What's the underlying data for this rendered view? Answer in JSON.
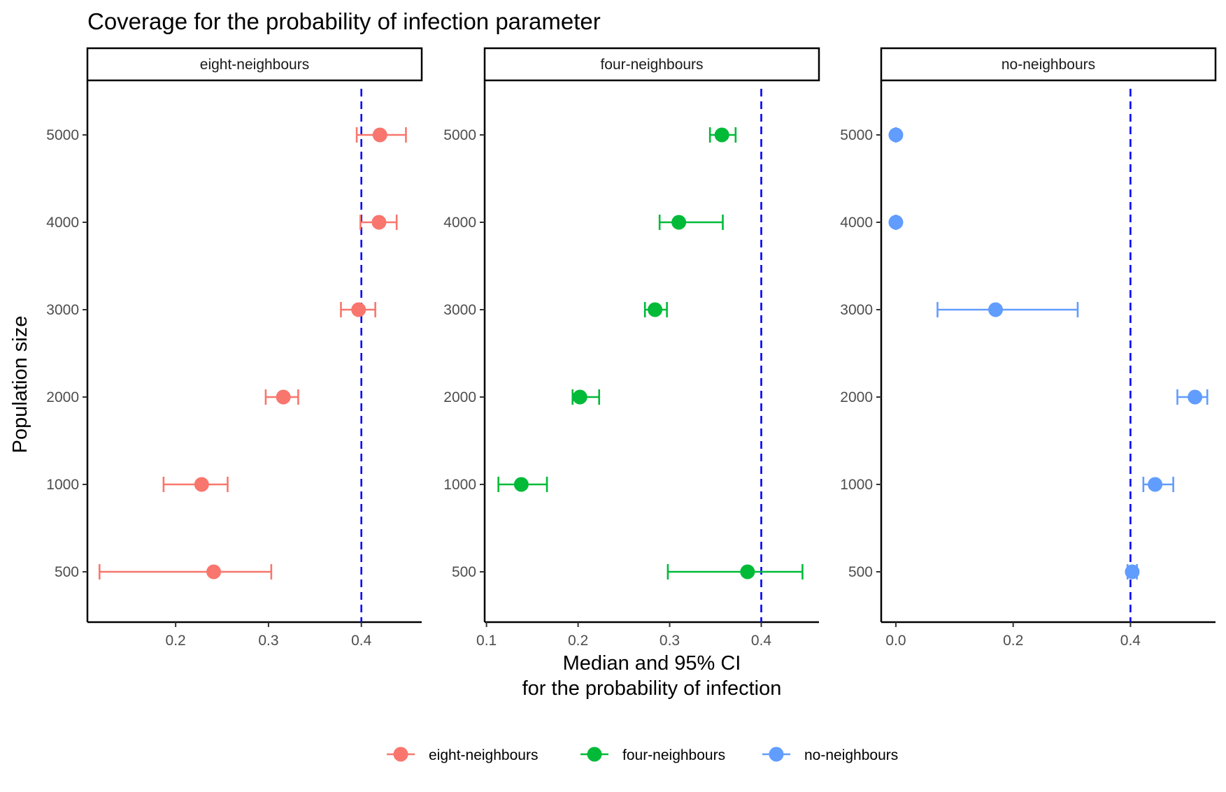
{
  "chart_data": {
    "type": "scatter",
    "subtype": "point-with-horizontal-errorbars, faceted",
    "title": "Coverage for the probability of infection parameter",
    "xlabel": [
      "Median and 95% CI",
      "for the probability of infection"
    ],
    "ylabel": "Population size",
    "categories": [
      "500",
      "1000",
      "2000",
      "3000",
      "4000",
      "5000"
    ],
    "reference_line": {
      "x": 0.4,
      "color": "#0000ff",
      "style": "dashed"
    },
    "grid": false,
    "legend_position": "bottom",
    "legend": [
      "eight-neighbours",
      "four-neighbours",
      "no-neighbours"
    ],
    "facets": [
      {
        "name": "eight-neighbours",
        "color": "#f8766d",
        "xlim": [
          0.105,
          0.465
        ],
        "xticks": [
          0.2,
          0.3,
          0.4
        ],
        "xtick_labels": [
          "0.2",
          "0.3",
          "0.4"
        ],
        "points": [
          {
            "y": "500",
            "median": 0.241,
            "lower": 0.118,
            "upper": 0.303
          },
          {
            "y": "1000",
            "median": 0.228,
            "lower": 0.187,
            "upper": 0.256
          },
          {
            "y": "2000",
            "median": 0.316,
            "lower": 0.297,
            "upper": 0.332
          },
          {
            "y": "3000",
            "median": 0.397,
            "lower": 0.378,
            "upper": 0.415
          },
          {
            "y": "4000",
            "median": 0.419,
            "lower": 0.399,
            "upper": 0.438
          },
          {
            "y": "5000",
            "median": 0.42,
            "lower": 0.395,
            "upper": 0.448
          }
        ]
      },
      {
        "name": "four-neighbours",
        "color": "#00ba38",
        "xlim": [
          0.098,
          0.463
        ],
        "xticks": [
          0.1,
          0.2,
          0.3,
          0.4
        ],
        "xtick_labels": [
          "0.1",
          "0.2",
          "0.3",
          "0.4"
        ],
        "points": [
          {
            "y": "500",
            "median": 0.385,
            "lower": 0.298,
            "upper": 0.445
          },
          {
            "y": "1000",
            "median": 0.138,
            "lower": 0.113,
            "upper": 0.166
          },
          {
            "y": "2000",
            "median": 0.202,
            "lower": 0.194,
            "upper": 0.223
          },
          {
            "y": "3000",
            "median": 0.284,
            "lower": 0.273,
            "upper": 0.297
          },
          {
            "y": "4000",
            "median": 0.31,
            "lower": 0.289,
            "upper": 0.358
          },
          {
            "y": "5000",
            "median": 0.357,
            "lower": 0.344,
            "upper": 0.372
          }
        ]
      },
      {
        "name": "no-neighbours",
        "color": "#619cff",
        "xlim": [
          -0.025,
          0.545
        ],
        "xticks": [
          0.0,
          0.2,
          0.4
        ],
        "xtick_labels": [
          "0.0",
          "0.2",
          "0.4"
        ],
        "points": [
          {
            "y": "500",
            "median": 0.403,
            "lower": 0.395,
            "upper": 0.411
          },
          {
            "y": "1000",
            "median": 0.442,
            "lower": 0.422,
            "upper": 0.473
          },
          {
            "y": "2000",
            "median": 0.51,
            "lower": 0.48,
            "upper": 0.531
          },
          {
            "y": "3000",
            "median": 0.17,
            "lower": 0.071,
            "upper": 0.31
          },
          {
            "y": "4000",
            "median": 0.0,
            "lower": 0.0,
            "upper": 0.0
          },
          {
            "y": "5000",
            "median": 0.0,
            "lower": 0.0,
            "upper": 0.0
          }
        ]
      }
    ]
  }
}
